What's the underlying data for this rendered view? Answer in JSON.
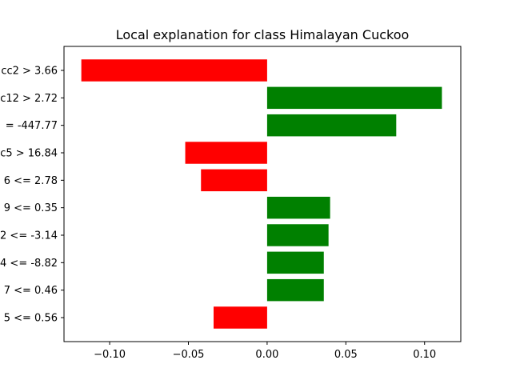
{
  "chart_data": {
    "type": "bar",
    "orientation": "horizontal",
    "title": "Local explanation for class Himalayan Cuckoo",
    "xlabel": "",
    "ylabel": "",
    "categories": [
      "cc2 > 3.66",
      "c12 > 2.72",
      "= -447.77",
      "c5 > 16.84",
      "6 <= 2.78",
      "9 <= 0.35",
      "2 <= -3.14",
      "4 <= -8.82",
      "7 <= 0.46",
      "5 <= 0.56"
    ],
    "values": [
      -0.118,
      0.111,
      0.082,
      -0.052,
      -0.042,
      0.04,
      0.039,
      0.036,
      0.036,
      -0.034
    ],
    "xlim": [
      -0.129,
      0.123
    ],
    "xticks": [
      -0.1,
      -0.05,
      0.0,
      0.05,
      0.1
    ],
    "xtick_labels": [
      "−0.10",
      "−0.05",
      "0.00",
      "0.05",
      "0.10"
    ],
    "positive_color": "#008000",
    "negative_color": "#ff0000",
    "grid": false,
    "legend": "none"
  }
}
